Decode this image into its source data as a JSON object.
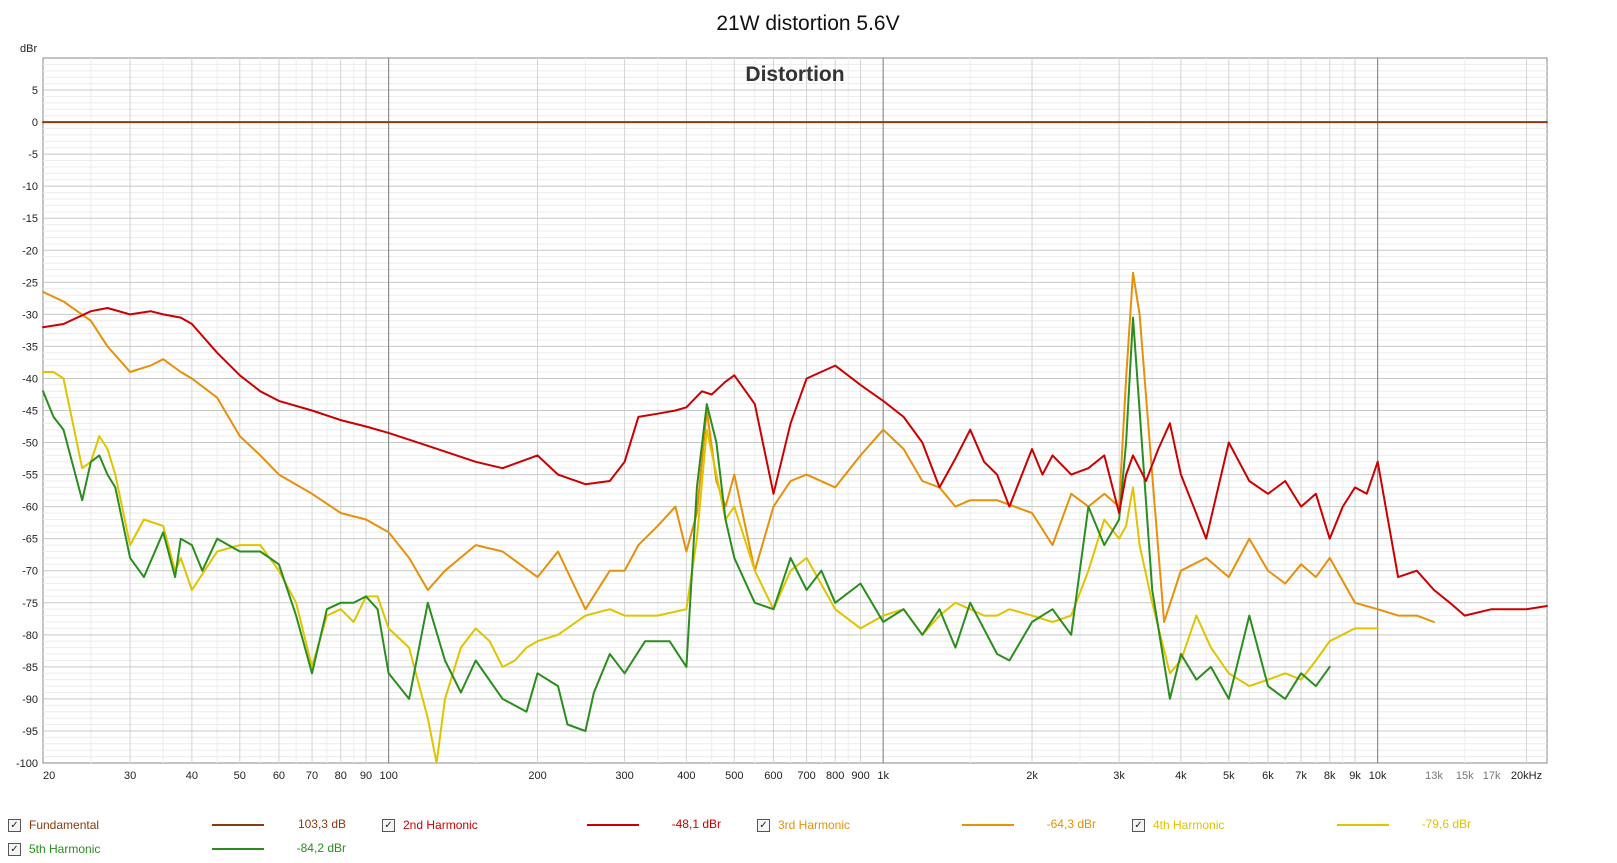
{
  "chart_data": {
    "type": "line",
    "title": "21W distortion 5.6V",
    "inner_title": "Distortion",
    "ylabel": "dBr",
    "xscale": "log",
    "xlim": [
      20,
      22000
    ],
    "ylim": [
      -100,
      10
    ],
    "grid": true,
    "yticks": [
      5,
      0,
      -5,
      -10,
      -15,
      -20,
      -25,
      -30,
      -35,
      -40,
      -45,
      -50,
      -55,
      -60,
      -65,
      -70,
      -75,
      -80,
      -85,
      -90,
      -95,
      -100
    ],
    "xticks": [
      {
        "v": 20,
        "l": "20"
      },
      {
        "v": 30,
        "l": "30"
      },
      {
        "v": 40,
        "l": "40"
      },
      {
        "v": 50,
        "l": "50"
      },
      {
        "v": 60,
        "l": "60"
      },
      {
        "v": 70,
        "l": "70"
      },
      {
        "v": 80,
        "l": "80"
      },
      {
        "v": 90,
        "l": "90"
      },
      {
        "v": 100,
        "l": "100"
      },
      {
        "v": 200,
        "l": "200"
      },
      {
        "v": 300,
        "l": "300"
      },
      {
        "v": 400,
        "l": "400"
      },
      {
        "v": 500,
        "l": "500"
      },
      {
        "v": 600,
        "l": "600"
      },
      {
        "v": 700,
        "l": "700"
      },
      {
        "v": 800,
        "l": "800"
      },
      {
        "v": 900,
        "l": "900"
      },
      {
        "v": 1000,
        "l": "1k"
      },
      {
        "v": 2000,
        "l": "2k"
      },
      {
        "v": 3000,
        "l": "3k"
      },
      {
        "v": 4000,
        "l": "4k"
      },
      {
        "v": 5000,
        "l": "5k"
      },
      {
        "v": 6000,
        "l": "6k"
      },
      {
        "v": 7000,
        "l": "7k"
      },
      {
        "v": 8000,
        "l": "8k"
      },
      {
        "v": 9000,
        "l": "9k"
      },
      {
        "v": 10000,
        "l": "10k"
      },
      {
        "v": 13000,
        "l": "13k"
      },
      {
        "v": 15000,
        "l": "15k"
      },
      {
        "v": 17000,
        "l": "17k"
      },
      {
        "v": 20000,
        "l": "20kHz"
      }
    ],
    "series": [
      {
        "name": "Fundamental",
        "color": "#8b3a0f",
        "value_label": "103,3 dB",
        "x": [
          20,
          22000
        ],
        "y": [
          0,
          0
        ]
      },
      {
        "name": "2nd Harmonic",
        "color": "#cc0000",
        "value_label": "-48,1 dBr",
        "x": [
          20,
          22,
          25,
          27,
          30,
          33,
          35,
          38,
          40,
          45,
          50,
          55,
          60,
          70,
          80,
          90,
          100,
          120,
          150,
          170,
          200,
          220,
          250,
          280,
          300,
          320,
          350,
          380,
          400,
          430,
          450,
          480,
          500,
          550,
          600,
          650,
          700,
          800,
          900,
          1000,
          1100,
          1200,
          1300,
          1400,
          1500,
          1600,
          1700,
          1800,
          2000,
          2100,
          2200,
          2400,
          2600,
          2800,
          3000,
          3100,
          3200,
          3400,
          3600,
          3800,
          4000,
          4500,
          5000,
          5500,
          6000,
          6500,
          7000,
          7500,
          8000,
          8500,
          9000,
          9500,
          10000,
          11000,
          12000,
          13000,
          14000,
          15000,
          17000,
          20000,
          22000
        ],
        "y": [
          -32,
          -31.5,
          -29.5,
          -29,
          -30,
          -29.5,
          -30,
          -30.5,
          -31.5,
          -36,
          -39.5,
          -42,
          -43.5,
          -45,
          -46.5,
          -47.5,
          -48.5,
          -50.5,
          -53,
          -54,
          -52,
          -55,
          -56.5,
          -56,
          -53,
          -46,
          -45.5,
          -45,
          -44.5,
          -42,
          -42.5,
          -40.5,
          -39.5,
          -44,
          -58,
          -47,
          -40,
          -38,
          -41,
          -43.5,
          -46,
          -50,
          -57,
          -52.5,
          -48,
          -53,
          -55,
          -60,
          -51,
          -55,
          -52,
          -55,
          -54,
          -52,
          -61,
          -55,
          -52,
          -56,
          -51,
          -47,
          -55,
          -65,
          -50,
          -56,
          -58,
          -56,
          -60,
          -58,
          -65,
          -60,
          -57,
          -58,
          -53,
          -71,
          -70,
          -73,
          -75,
          -77,
          -76,
          -76,
          -75.5
        ]
      },
      {
        "name": "3rd Harmonic",
        "color": "#e8900a",
        "value_label": "-64,3 dBr",
        "x": [
          20,
          22,
          25,
          27,
          30,
          33,
          35,
          38,
          40,
          45,
          50,
          55,
          60,
          70,
          80,
          90,
          100,
          110,
          120,
          130,
          150,
          170,
          200,
          220,
          250,
          280,
          300,
          320,
          350,
          380,
          400,
          420,
          440,
          460,
          480,
          500,
          550,
          600,
          650,
          700,
          800,
          900,
          1000,
          1100,
          1200,
          1300,
          1400,
          1500,
          1700,
          2000,
          2200,
          2400,
          2600,
          2800,
          3000,
          3100,
          3200,
          3300,
          3500,
          3700,
          4000,
          4500,
          5000,
          5500,
          6000,
          6500,
          7000,
          7500,
          8000,
          9000,
          10000,
          11000,
          12000,
          13000
        ],
        "y": [
          -26.5,
          -28,
          -31,
          -35,
          -39,
          -38,
          -37,
          -39,
          -40,
          -43,
          -49,
          -52,
          -55,
          -58,
          -61,
          -62,
          -64,
          -68,
          -73,
          -70,
          -66,
          -67,
          -71,
          -67,
          -76,
          -70,
          -70,
          -66,
          -63,
          -60,
          -67,
          -61,
          -45,
          -56,
          -60,
          -55,
          -70,
          -60,
          -56,
          -55,
          -57,
          -52,
          -48,
          -51,
          -56,
          -57,
          -60,
          -59,
          -59,
          -61,
          -66,
          -58,
          -60,
          -58,
          -60,
          -40,
          -23.5,
          -30,
          -55,
          -78,
          -70,
          -68,
          -71,
          -65,
          -70,
          -72,
          -69,
          -71,
          -68,
          -75,
          -76,
          -77,
          -77,
          -78
        ]
      },
      {
        "name": "4th Harmonic",
        "color": "#e0c400",
        "value_label": "-79,6 dBr",
        "x": [
          20,
          21,
          22,
          24,
          25,
          26,
          27,
          28,
          30,
          32,
          35,
          37,
          38,
          40,
          45,
          50,
          55,
          60,
          65,
          70,
          75,
          80,
          85,
          90,
          95,
          100,
          110,
          120,
          125,
          130,
          140,
          150,
          160,
          170,
          180,
          190,
          200,
          220,
          250,
          280,
          300,
          350,
          400,
          420,
          440,
          460,
          480,
          500,
          550,
          600,
          650,
          700,
          800,
          900,
          1000,
          1100,
          1200,
          1300,
          1400,
          1500,
          1600,
          1700,
          1800,
          2000,
          2200,
          2400,
          2600,
          2800,
          3000,
          3100,
          3200,
          3300,
          3500,
          3800,
          4000,
          4300,
          4600,
          5000,
          5500,
          6000,
          6500,
          7000,
          7500,
          8000,
          9000,
          10000
        ],
        "y": [
          -39,
          -39,
          -40,
          -54,
          -53,
          -49,
          -51,
          -55,
          -66,
          -62,
          -63,
          -70,
          -68,
          -73,
          -67,
          -66,
          -66,
          -70,
          -75,
          -85,
          -77,
          -76,
          -78,
          -74,
          -74,
          -79,
          -82,
          -93,
          -100,
          -90,
          -82,
          -79,
          -81,
          -85,
          -84,
          -82,
          -81,
          -80,
          -77,
          -76,
          -77,
          -77,
          -76,
          -65,
          -48,
          -55,
          -62,
          -60,
          -70,
          -76,
          -70,
          -68,
          -76,
          -79,
          -77,
          -76,
          -80,
          -77,
          -75,
          -76,
          -77,
          -77,
          -76,
          -77,
          -78,
          -77,
          -70,
          -62,
          -65,
          -63,
          -57,
          -66,
          -75,
          -86,
          -84,
          -77,
          -82,
          -86,
          -88,
          -87,
          -86,
          -87,
          -84,
          -81,
          -79,
          -79
        ]
      },
      {
        "name": "5th Harmonic",
        "color": "#2a8e1e",
        "value_label": "-84,2 dBr",
        "x": [
          20,
          21,
          22,
          24,
          25,
          26,
          27,
          28,
          30,
          32,
          35,
          37,
          38,
          40,
          42,
          45,
          50,
          55,
          60,
          65,
          70,
          75,
          80,
          85,
          90,
          95,
          100,
          110,
          120,
          130,
          140,
          150,
          170,
          190,
          200,
          220,
          230,
          250,
          260,
          280,
          300,
          330,
          370,
          400,
          420,
          440,
          460,
          480,
          500,
          550,
          600,
          650,
          700,
          750,
          800,
          900,
          1000,
          1100,
          1200,
          1300,
          1400,
          1500,
          1700,
          1800,
          2000,
          2200,
          2400,
          2600,
          2800,
          3000,
          3100,
          3200,
          3300,
          3500,
          3800,
          4000,
          4300,
          4600,
          5000,
          5500,
          6000,
          6500,
          7000,
          7500,
          8000
        ],
        "y": [
          -42,
          -46,
          -48,
          -59,
          -53,
          -52,
          -55,
          -57,
          -68,
          -71,
          -64,
          -71,
          -65,
          -66,
          -70,
          -65,
          -67,
          -67,
          -69,
          -77,
          -86,
          -76,
          -75,
          -75,
          -74,
          -76,
          -86,
          -90,
          -75,
          -84,
          -89,
          -84,
          -90,
          -92,
          -86,
          -88,
          -94,
          -95,
          -89,
          -83,
          -86,
          -81,
          -81,
          -85,
          -57,
          -44,
          -50,
          -62,
          -68,
          -75,
          -76,
          -68,
          -73,
          -70,
          -75,
          -72,
          -78,
          -76,
          -80,
          -76,
          -82,
          -75,
          -83,
          -84,
          -78,
          -76,
          -80,
          -60,
          -66,
          -62,
          -50,
          -30.5,
          -45,
          -73,
          -90,
          -83,
          -87,
          -85,
          -90,
          -77,
          -88,
          -90,
          -86,
          -88,
          -85
        ]
      }
    ]
  }
}
